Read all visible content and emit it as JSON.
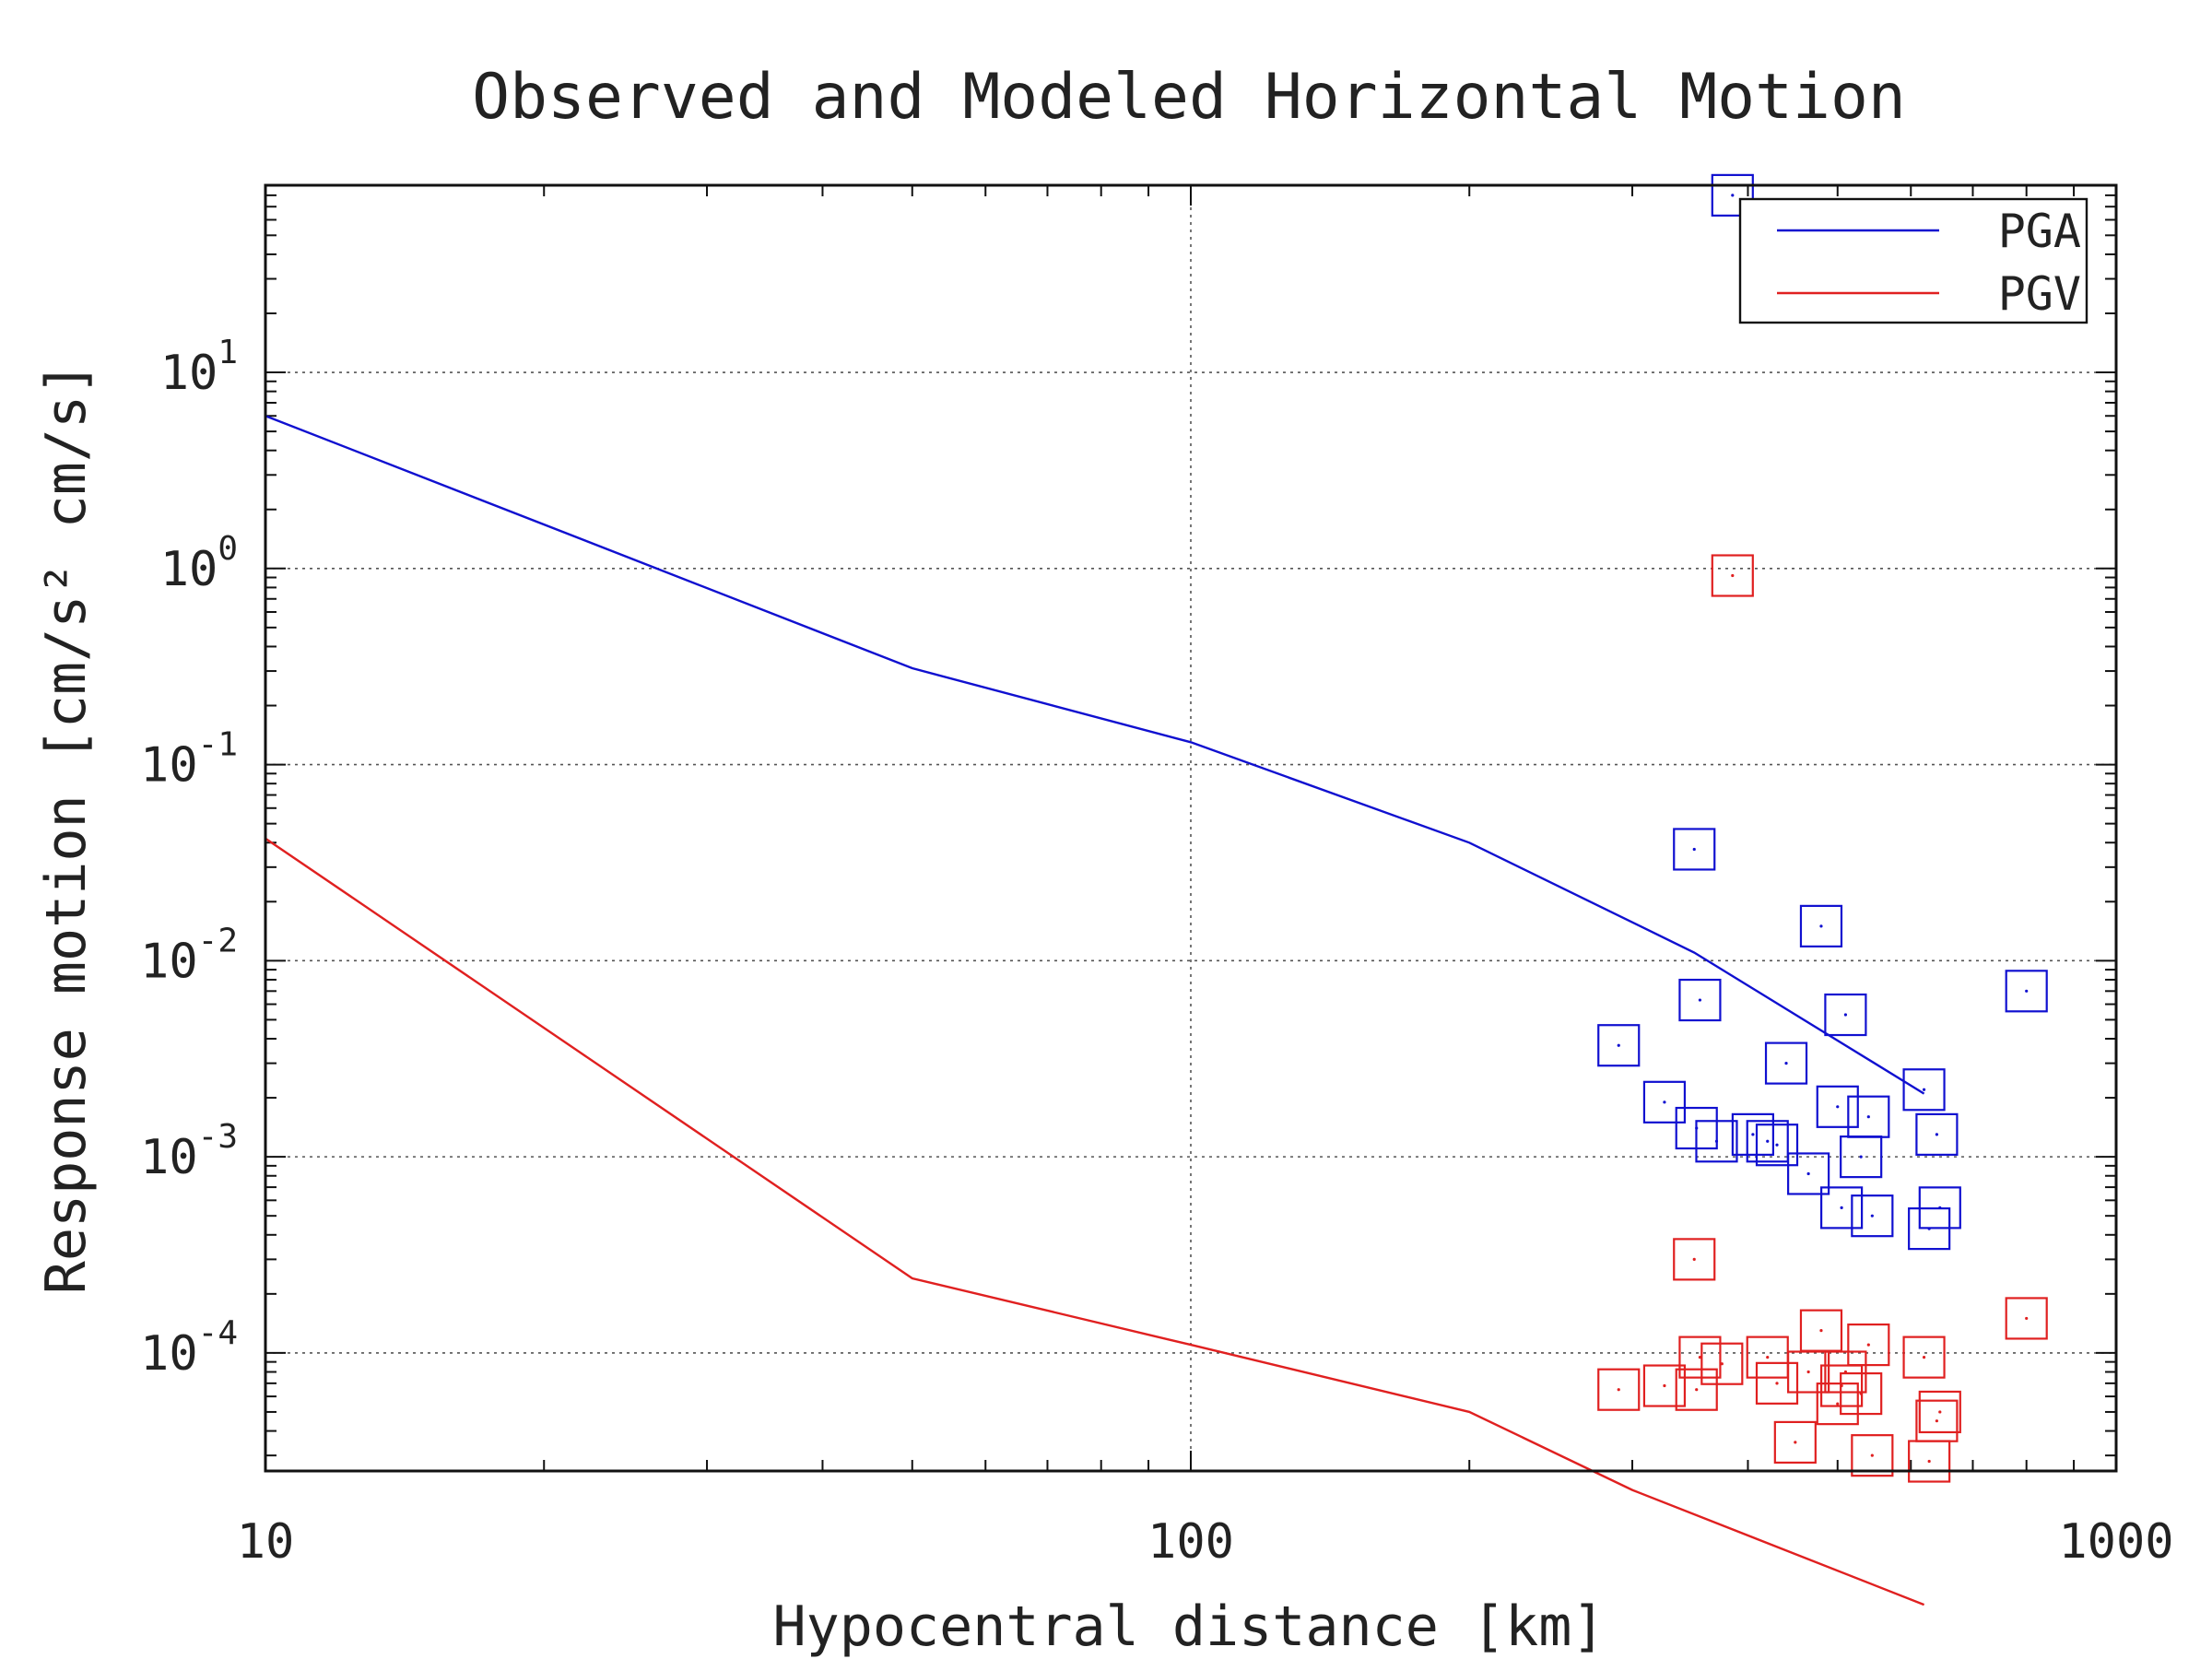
{
  "chart_data": {
    "type": "scatter",
    "title": "Observed and Modeled Horizontal Motion",
    "xlabel": "Hypocentral distance [km]",
    "ylabel": "Response motion [cm/s² cm/s]",
    "xscale": "log",
    "yscale": "log",
    "xlim": [
      10,
      1000
    ],
    "ylim": [
      2.5e-05,
      90
    ],
    "grid": true,
    "legend_position": "top-right",
    "x_tick_labels": [
      "10",
      "100",
      "1000"
    ],
    "y_tick_labels": [
      {
        "base": "10",
        "exp": "-4"
      },
      {
        "base": "10",
        "exp": "-3"
      },
      {
        "base": "10",
        "exp": "-2"
      },
      {
        "base": "10",
        "exp": "-1"
      },
      {
        "base": "10",
        "exp": "0"
      },
      {
        "base": "10",
        "exp": "1"
      }
    ],
    "series": [
      {
        "name": "PGA",
        "color": "#1010d0",
        "model": {
          "x": [
            10,
            50,
            100,
            200,
            350,
            620
          ],
          "y": [
            6.0,
            0.31,
            0.13,
            0.04,
            0.011,
            0.0021
          ]
        },
        "observed": {
          "x": [
            290,
            325,
            350,
            355,
            352,
            370,
            385,
            405,
            420,
            430,
            440,
            465,
            480,
            500,
            505,
            510,
            530,
            540,
            545,
            620,
            628,
            640,
            645,
            800
          ],
          "y": [
            0.0037,
            0.0019,
            0.037,
            0.0063,
            0.0014,
            0.0012,
            80,
            0.0013,
            0.0012,
            0.00115,
            0.003,
            0.00082,
            0.015,
            0.0018,
            0.00055,
            0.0053,
            0.001,
            0.0016,
            0.0005,
            0.0022,
            0.00043,
            0.0013,
            0.00055,
            0.007
          ]
        }
      },
      {
        "name": "PGV",
        "color": "#e02020",
        "model": {
          "x": [
            10,
            50,
            100,
            200,
            300,
            620
          ],
          "y": [
            0.042,
            0.00024,
            0.00011,
            5e-05,
            2e-05,
            5.2e-06
          ]
        },
        "observed": {
          "x": [
            290,
            325,
            350,
            355,
            352,
            375,
            385,
            420,
            430,
            450,
            465,
            480,
            500,
            505,
            510,
            530,
            540,
            545,
            620,
            628,
            640,
            645,
            800
          ],
          "y": [
            6.5e-05,
            6.8e-05,
            0.0003,
            9.5e-05,
            6.5e-05,
            8.8e-05,
            0.92,
            9.5e-05,
            7e-05,
            3.5e-05,
            8e-05,
            0.00013,
            5.5e-05,
            6.8e-05,
            8e-05,
            6.2e-05,
            0.00011,
            3e-05,
            9.5e-05,
            2.8e-05,
            4.5e-05,
            5e-05,
            0.00015
          ]
        }
      }
    ]
  }
}
